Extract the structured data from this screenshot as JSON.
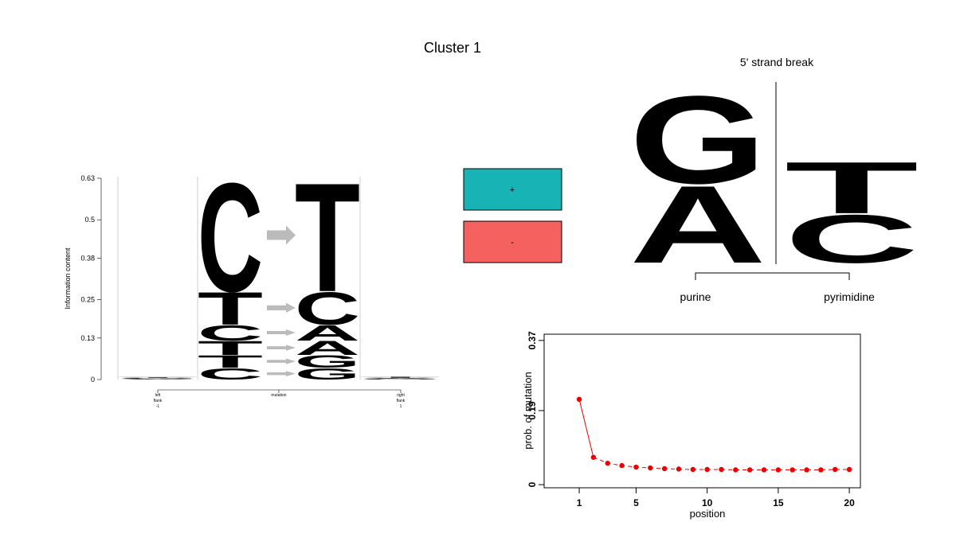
{
  "title": "Cluster 1",
  "chart_data": [
    {
      "type": "logo",
      "ylabel": "Information content",
      "ylim": [
        0,
        0.63
      ],
      "yticks": [
        0,
        0.13,
        0.25,
        0.38,
        0.5,
        0.63
      ],
      "categories": [
        [
          "left",
          "flank",
          "-1"
        ],
        [
          "mutation"
        ],
        [
          "right",
          "flank",
          "1"
        ]
      ],
      "colors": {
        "A": "#00ee00",
        "C": "#0000ee",
        "G": "#ff9900",
        "T": "#ff0000"
      },
      "left_flank": [
        {
          "letter": "A",
          "value": 0.002
        },
        {
          "letter": "G",
          "value": 0.002
        },
        {
          "letter": "C",
          "value": 0.002
        },
        {
          "letter": "T",
          "value": 0.002
        }
      ],
      "mutations": [
        {
          "from": "C",
          "to": "G",
          "value": 0.037
        },
        {
          "from": "T",
          "to": "G",
          "value": 0.04
        },
        {
          "from": "T",
          "to": "A",
          "value": 0.045
        },
        {
          "from": "C",
          "to": "A",
          "value": 0.05
        },
        {
          "from": "T",
          "to": "C",
          "value": 0.105
        },
        {
          "from": "C",
          "to": "T",
          "value": 0.35
        }
      ],
      "right_flank": [
        {
          "letter": "G",
          "value": 0.002
        },
        {
          "letter": "A",
          "value": 0.002
        },
        {
          "letter": "C",
          "value": 0.002
        },
        {
          "letter": "T",
          "value": 0.003
        }
      ]
    },
    {
      "type": "legend_boxes",
      "items": [
        {
          "label": "+",
          "color": "#17b3b5"
        },
        {
          "label": "-",
          "color": "#f4615e"
        }
      ]
    },
    {
      "type": "strand_logo",
      "title": "5' strand break",
      "ylim": [
        0,
        1
      ],
      "groups": [
        {
          "label": "purine",
          "color": "#0000ff",
          "letters": [
            {
              "letter": "A",
              "value": 0.45
            },
            {
              "letter": "G",
              "value": 0.51
            }
          ]
        },
        {
          "label": "pyrimidine",
          "color": "#ff0000",
          "letters": [
            {
              "letter": "C",
              "value": 0.28
            },
            {
              "letter": "T",
              "value": 0.3
            }
          ]
        }
      ]
    },
    {
      "type": "line",
      "xlabel": "position",
      "ylabel": "prob. of mutation",
      "color": "#ee0000",
      "x": [
        1,
        2,
        3,
        4,
        5,
        6,
        7,
        8,
        9,
        10,
        11,
        12,
        13,
        14,
        15,
        16,
        17,
        18,
        19,
        20
      ],
      "values": [
        0.219,
        0.07,
        0.055,
        0.049,
        0.045,
        0.043,
        0.041,
        0.04,
        0.039,
        0.039,
        0.039,
        0.038,
        0.038,
        0.038,
        0.038,
        0.038,
        0.038,
        0.038,
        0.039,
        0.039
      ],
      "xlim": [
        -1.47,
        20.78
      ],
      "ylim": [
        -0.008,
        0.386
      ],
      "xticks": [
        1,
        5,
        10,
        15,
        20
      ],
      "yticks": [
        0,
        0.19,
        0.37
      ]
    }
  ]
}
